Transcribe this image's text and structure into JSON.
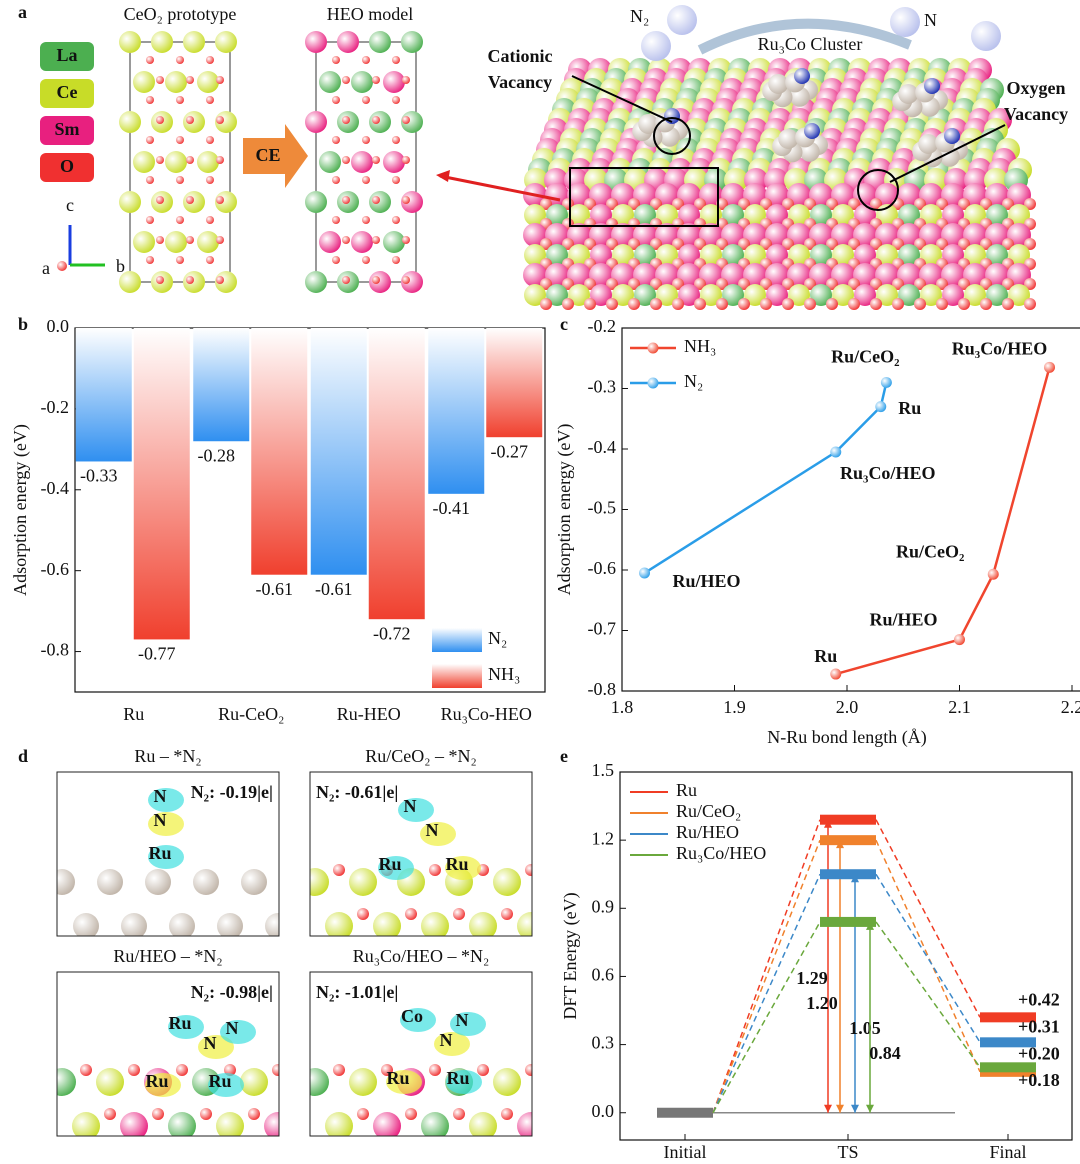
{
  "panel_labels": [
    "a",
    "b",
    "c",
    "d",
    "e"
  ],
  "panel_a": {
    "prototype_title": "CeO₂ prototype",
    "model_title": "HEO model",
    "legend": [
      "La",
      "Ce",
      "Sm",
      "O"
    ],
    "arrow_label": "CE",
    "axes": [
      "c",
      "a",
      "b"
    ],
    "reactant": "N₂",
    "product": "N",
    "cluster": "Ru₃Co Cluster",
    "cationic": [
      "Cationic",
      "Vacancy"
    ],
    "oxygen": [
      "Oxygen",
      "Vacancy"
    ]
  },
  "panel_d": [
    {
      "title": "Ru – *N₂",
      "charge": "N₂: -0.19|e|",
      "atoms": [
        "N",
        "N",
        "Ru"
      ]
    },
    {
      "title": "Ru/CeO₂ – *N₂",
      "charge": "N₂: -0.61|e|",
      "atoms": [
        "N",
        "N",
        "Ru",
        "Ru"
      ]
    },
    {
      "title": "Ru/HEO – *N₂",
      "charge": "N₂: -0.98|e|",
      "atoms": [
        "Ru",
        "N",
        "N",
        "Ru",
        "Ru"
      ]
    },
    {
      "title": "Ru₃Co/HEO – *N₂",
      "charge": "N₂: -1.01|e|",
      "atoms": [
        "Co",
        "N",
        "N",
        "Ru",
        "Ru"
      ]
    }
  ],
  "chart_data": [
    {
      "type": "bar",
      "ylabel": "Adsorption energy (eV)",
      "categories": [
        "Ru",
        "Ru-CeO₂",
        "Ru-HEO",
        "Ru₃Co-HEO"
      ],
      "series": [
        {
          "name": "N₂",
          "color": "#2f8ff0",
          "values": [
            -0.33,
            -0.28,
            -0.61,
            -0.41
          ]
        },
        {
          "name": "NH₃",
          "color": "#f0402e",
          "values": [
            -0.77,
            -0.61,
            -0.72,
            -0.27
          ]
        }
      ],
      "ylim": [
        -0.9,
        0
      ],
      "yticks": [
        {
          "value": 0,
          "label": "0.0"
        },
        -0.2,
        -0.4,
        -0.6,
        -0.8
      ],
      "legend": "lower right"
    },
    {
      "type": "line",
      "xlabel": "N-Ru bond length (Å)",
      "ylabel": "Adsorption energy (eV)",
      "series": [
        {
          "name": "NH₃",
          "color": "#f0452e",
          "x": [
            1.99,
            2.1,
            2.13,
            2.18
          ],
          "values": [
            -0.772,
            -0.715,
            -0.607,
            -0.265
          ],
          "point_labels": [
            "Ru",
            "Ru/HEO",
            "Ru/CeO₂",
            "Ru₃Co/HEO"
          ]
        },
        {
          "name": "N₂",
          "color": "#2a9de8",
          "x": [
            1.82,
            1.99,
            2.03,
            2.035
          ],
          "values": [
            -0.605,
            -0.405,
            -0.33,
            -0.29
          ],
          "point_labels": [
            "Ru/HEO",
            "Ru₃Co/HEO",
            "Ru",
            "Ru/CeO₂"
          ]
        }
      ],
      "xlim": [
        1.8,
        2.2
      ],
      "xticks": [
        1.8,
        1.9,
        {
          "value": 2,
          "label": "2.0"
        },
        2.1,
        2.2
      ],
      "ylim": [
        -0.8,
        -0.2
      ],
      "yticks": [
        -0.2,
        -0.3,
        -0.4,
        -0.5,
        -0.6,
        -0.7,
        -0.8
      ],
      "legend": "upper left"
    },
    {
      "type": "energy",
      "ylabel": "DFT Energy (eV)",
      "categories": [
        "Initial",
        "TS",
        "Final"
      ],
      "series": [
        {
          "name": "Ru",
          "color": "#f03c24",
          "values": [
            0,
            1.29,
            0.42
          ],
          "value_labels": [
            null,
            "1.29",
            "+0.42"
          ]
        },
        {
          "name": "Ru/CeO₂",
          "color": "#f0812c",
          "values": [
            0,
            1.2,
            0.18
          ],
          "value_labels": [
            null,
            "1.20",
            "+0.18"
          ]
        },
        {
          "name": "Ru/HEO",
          "color": "#3c88c8",
          "values": [
            0,
            1.05,
            0.31
          ],
          "value_labels": [
            null,
            "1.05",
            "+0.31"
          ]
        },
        {
          "name": "Ru₃Co/HEO",
          "color": "#6aa83c",
          "values": [
            0,
            0.84,
            0.2
          ],
          "value_labels": [
            null,
            "0.84",
            "+0.20"
          ]
        }
      ],
      "ylim": [
        -0.12,
        1.5
      ],
      "yticks": [
        {
          "value": 0,
          "label": "0.0"
        },
        0.3,
        0.6,
        0.9,
        1.2,
        1.5
      ],
      "legend": "upper left"
    }
  ]
}
